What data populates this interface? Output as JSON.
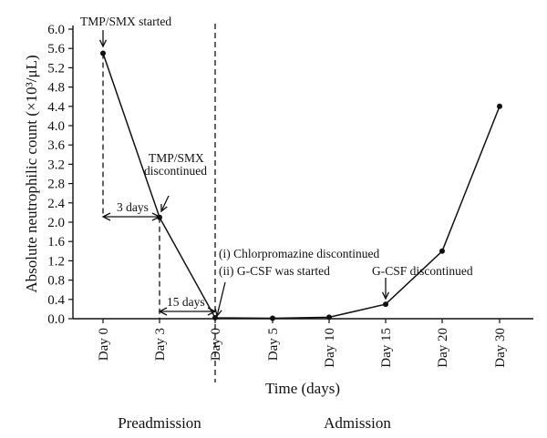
{
  "chart_data": {
    "type": "line",
    "categories": [
      "Day 0",
      "Day 3",
      "Day 0",
      "Day 5",
      "Day 10",
      "Day 15",
      "Day 20",
      "Day 30"
    ],
    "series": [
      {
        "values": [
          5.5,
          2.1,
          0.02,
          0.01,
          0.03,
          0.3,
          1.4,
          4.4
        ]
      }
    ],
    "ylabel": "Absolute neutrophilic count (×10³/μL)",
    "xlabel": "Time (days)",
    "ylim": [
      0,
      6
    ],
    "yticks": [
      "0.0",
      "0.4",
      "0.8",
      "1.2",
      "1.6",
      "2.0",
      "2.4",
      "2.8",
      "3.2",
      "3.6",
      "4.0",
      "4.4",
      "4.8",
      "5.2",
      "5.6",
      "6.0"
    ],
    "period_labels": [
      "Preadmission",
      "Admission"
    ],
    "annotations": {
      "tmp_started": "TMP/SMX started",
      "tmp_disc_line1": "TMP/SMX",
      "tmp_disc_line2": "discontinued",
      "three_days": "3 days",
      "fifteen_days": "15 days",
      "chlor_disc": "(i) Chlorpromazine discontinued",
      "gcsf_started": "(ii) G-CSF was started",
      "gcsf_disc": "G-CSF discontinued"
    },
    "colors": {
      "line": "#111111",
      "marker": "#111111",
      "axis": "#111111"
    }
  }
}
